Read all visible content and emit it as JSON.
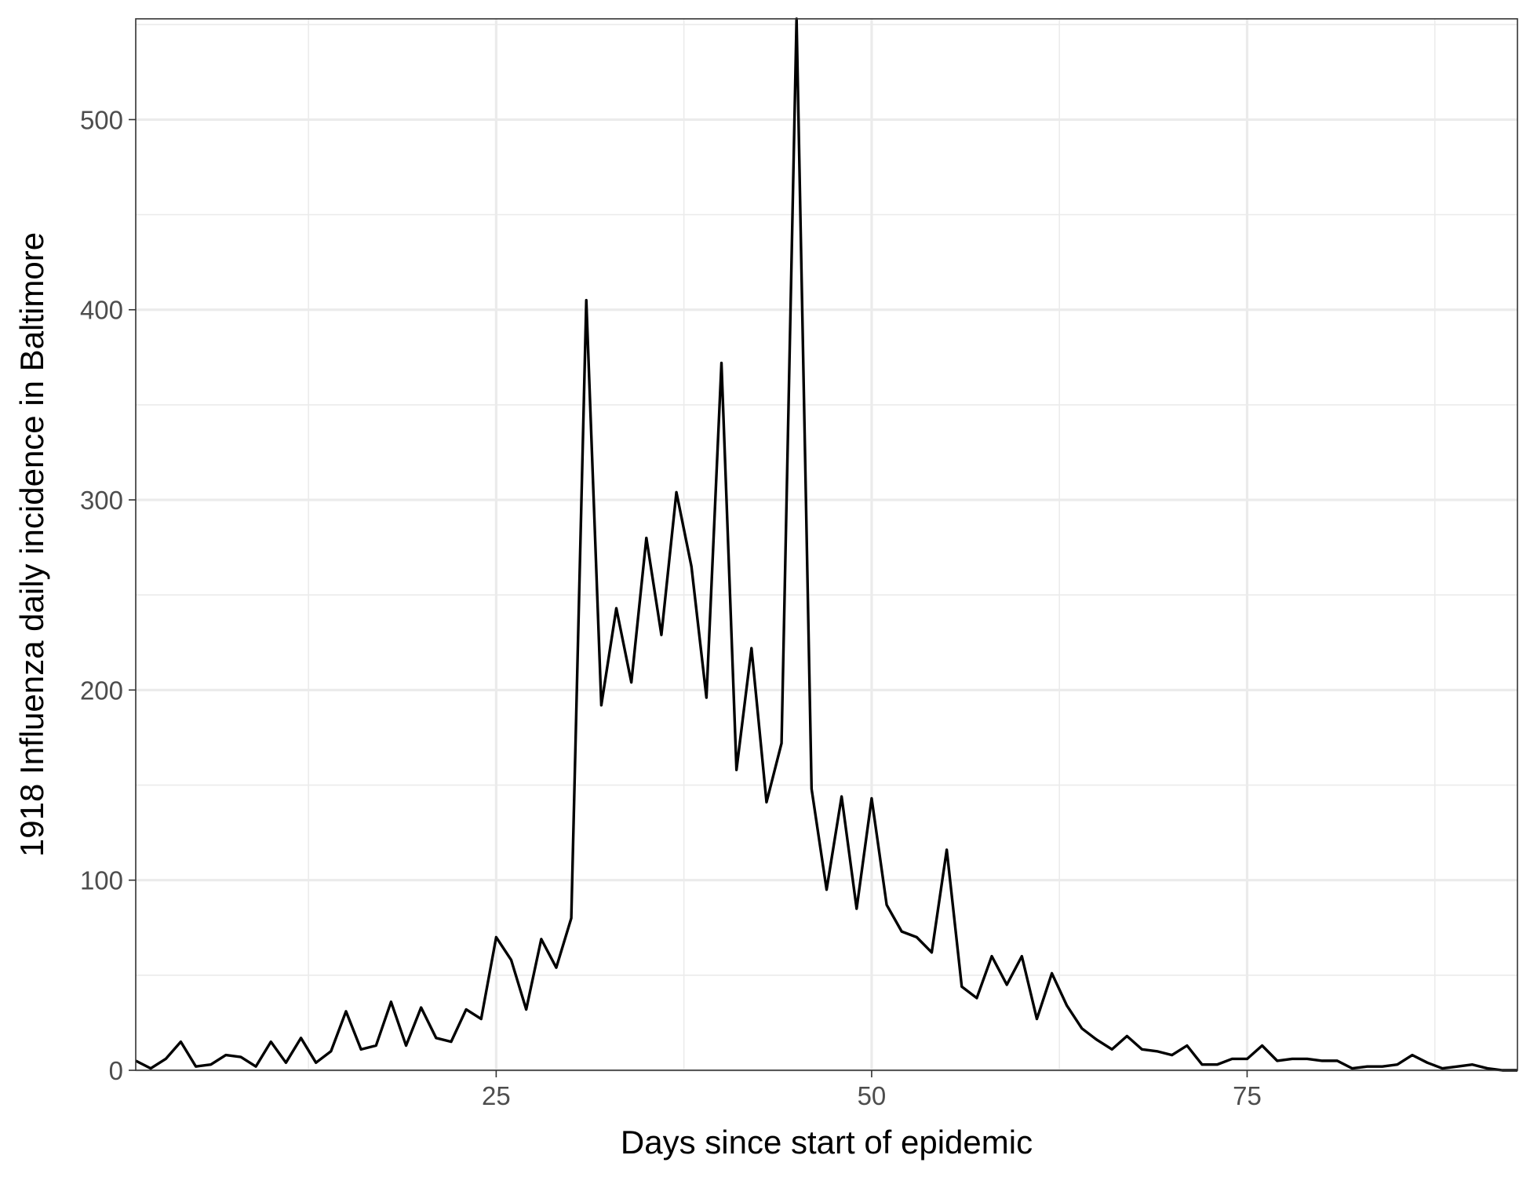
{
  "chart_data": {
    "type": "line",
    "title": "",
    "xlabel": "Days since start of epidemic",
    "ylabel": "1918 Influenza daily incidence in Baltimore",
    "xlim": [
      1,
      93
    ],
    "ylim": [
      0,
      553
    ],
    "x_major_ticks": [
      25,
      50,
      75
    ],
    "x_minor_ticks": [
      12.5,
      37.5,
      62.5,
      87.5
    ],
    "y_major_ticks": [
      0,
      100,
      200,
      300,
      400,
      500
    ],
    "y_minor_ticks": [
      50,
      150,
      250,
      350,
      450,
      550
    ],
    "grid": true,
    "theme": "black-and-white",
    "line_color": "#000000",
    "series": [
      {
        "x": [
          1,
          2,
          3,
          4,
          5,
          6,
          7,
          8,
          9,
          10,
          11,
          12,
          13,
          14,
          15,
          16,
          17,
          18,
          19,
          20,
          21,
          22,
          23,
          24,
          25,
          26,
          27,
          28,
          29,
          30,
          31,
          32,
          33,
          34,
          35,
          36,
          37,
          38,
          39,
          40,
          41,
          42,
          43,
          44,
          45,
          46,
          47,
          48,
          49,
          50,
          51,
          52,
          53,
          54,
          55,
          56,
          57,
          58,
          59,
          60,
          61,
          62,
          63,
          64,
          65,
          66,
          67,
          68,
          69,
          70,
          71,
          72,
          73,
          74,
          75,
          76,
          77,
          78,
          79,
          80,
          81,
          82,
          83,
          84,
          85,
          86,
          87,
          88,
          89,
          90,
          91,
          92,
          93
        ],
        "values": [
          5,
          1,
          6,
          15,
          2,
          3,
          8,
          7,
          2,
          15,
          4,
          17,
          4,
          10,
          31,
          11,
          13,
          36,
          13,
          33,
          17,
          15,
          32,
          27,
          70,
          58,
          32,
          69,
          54,
          80,
          405,
          192,
          243,
          204,
          280,
          229,
          304,
          265,
          196,
          372,
          158,
          222,
          141,
          172,
          553,
          148,
          95,
          144,
          85,
          143,
          87,
          73,
          70,
          62,
          116,
          44,
          38,
          60,
          45,
          60,
          27,
          51,
          34,
          22,
          16,
          11,
          18,
          11,
          10,
          8,
          13,
          3,
          3,
          6,
          6,
          13,
          5,
          6,
          6,
          5,
          5,
          1,
          2,
          2,
          3,
          8,
          4,
          1,
          2,
          3,
          1,
          0,
          0
        ]
      }
    ]
  }
}
